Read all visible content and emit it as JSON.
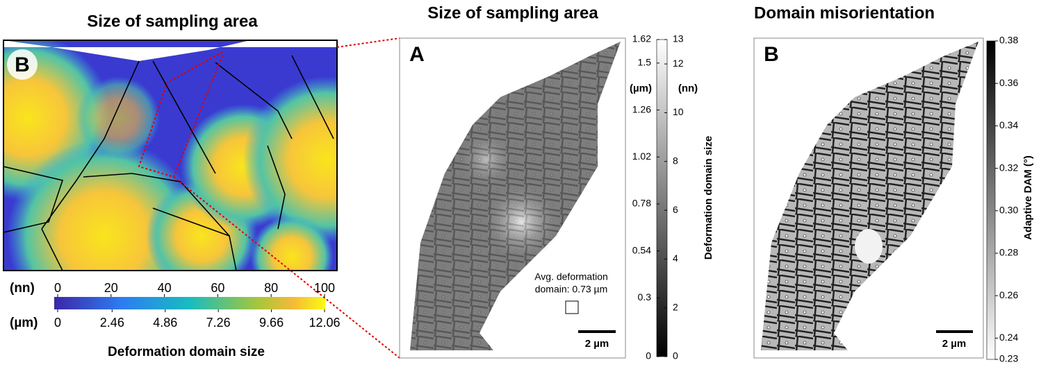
{
  "panels": [
    {
      "title": "Size of sampling area",
      "label": "B",
      "colorbar": {
        "title": "Deformation domain size",
        "units_top": "(nn)",
        "ticks_top": [
          0,
          20,
          40,
          60,
          80,
          100
        ],
        "units_bottom": "(µm)",
        "ticks_bottom": [
          0,
          2.46,
          4.86,
          7.26,
          9.66,
          12.06
        ]
      }
    },
    {
      "title": "Size of sampling area",
      "label": "A",
      "annotation": [
        "Avg. deformation",
        "domain: 0.73 µm"
      ],
      "scale_bar": "2 µm",
      "colorbar": {
        "title": "Deformation domain size",
        "units_left": "(µm)",
        "ticks_left": [
          0,
          0.3,
          0.54,
          0.78,
          1.02,
          1.26,
          1.5,
          1.62
        ],
        "units_right": "(nn)",
        "ticks_right": [
          0,
          2,
          4,
          6,
          8,
          10,
          12,
          13
        ]
      }
    },
    {
      "title": "Domain misorientation",
      "label": "B",
      "scale_bar": "2 µm",
      "colorbar": {
        "title": "Adaptive  DAM (°)",
        "ticks": [
          0.23,
          0.24,
          0.26,
          0.28,
          {
            "value": 0.3,
            "label": "0.30"
          },
          0.32,
          0.34,
          0.36,
          0.38
        ]
      }
    }
  ]
}
